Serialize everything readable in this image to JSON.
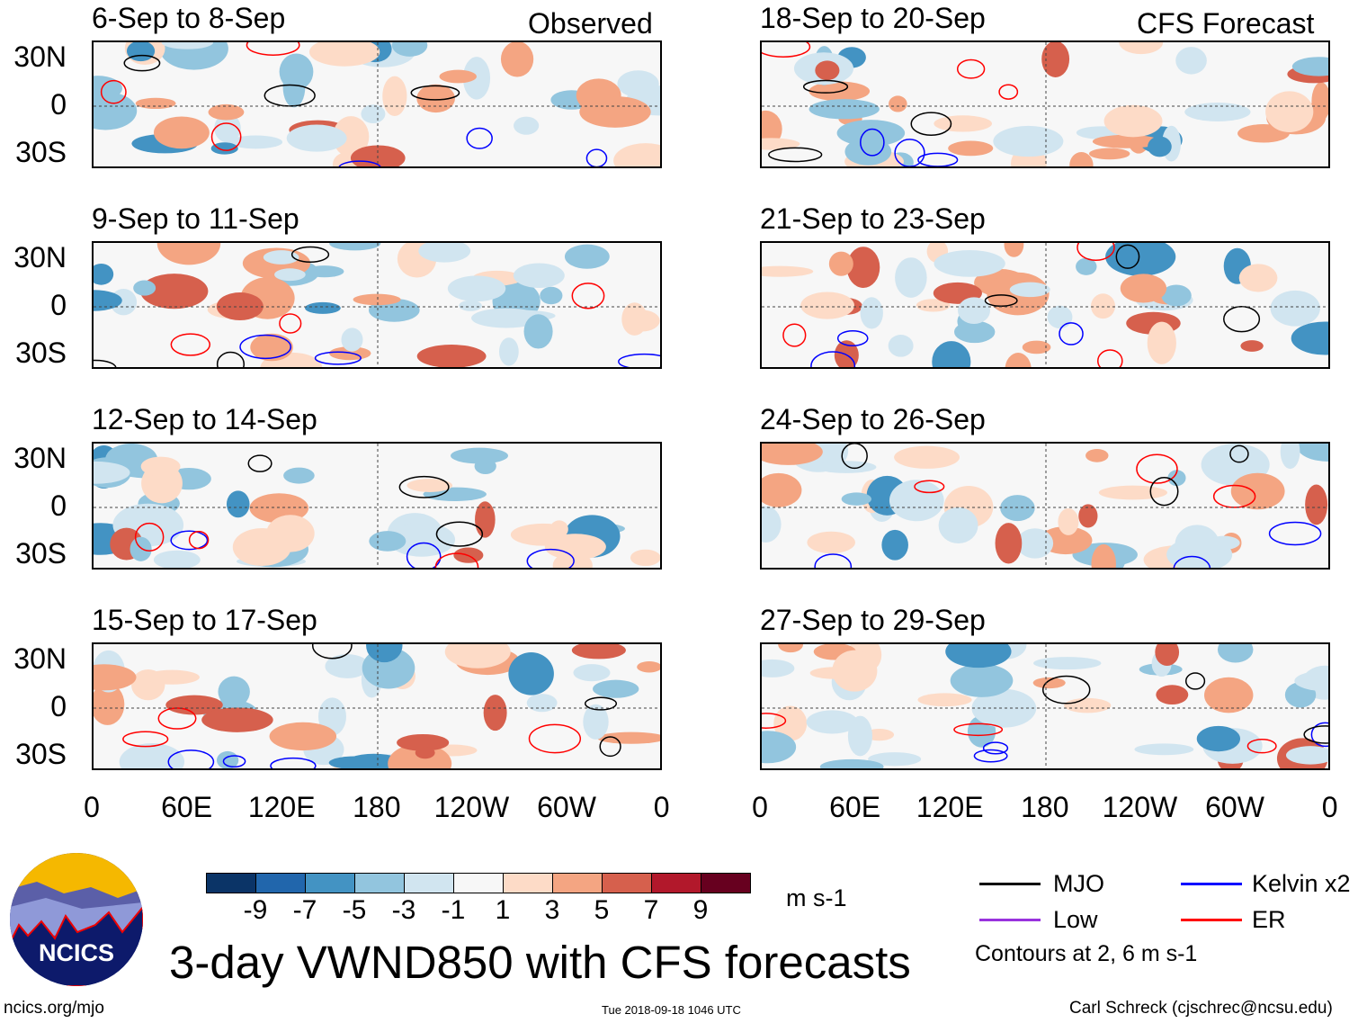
{
  "headers": {
    "left": "Observed",
    "right": "CFS Forecast"
  },
  "panels": [
    {
      "title": "6-Sep to 8-Sep",
      "column": "observed"
    },
    {
      "title": "9-Sep to 11-Sep",
      "column": "observed"
    },
    {
      "title": "12-Sep to 14-Sep",
      "column": "observed"
    },
    {
      "title": "15-Sep to 17-Sep",
      "column": "observed"
    },
    {
      "title": "18-Sep to 20-Sep",
      "column": "forecast"
    },
    {
      "title": "21-Sep to 23-Sep",
      "column": "forecast"
    },
    {
      "title": "24-Sep to 26-Sep",
      "column": "forecast"
    },
    {
      "title": "27-Sep to 29-Sep",
      "column": "forecast"
    }
  ],
  "y_ticks": [
    "30N",
    "0",
    "30S"
  ],
  "x_ticks": [
    "0",
    "60E",
    "120E",
    "180",
    "120W",
    "60W",
    "0"
  ],
  "colorbar": {
    "colors": [
      "#0b3467",
      "#2166ac",
      "#4393c3",
      "#92c5de",
      "#d1e5f0",
      "#f7f7f7",
      "#fddbc7",
      "#f4a582",
      "#d6604d",
      "#b2182b",
      "#67001f"
    ],
    "labels": [
      "-9",
      "-7",
      "-5",
      "-3",
      "-1",
      "1",
      "3",
      "5",
      "7",
      "9"
    ],
    "units": "m s-1"
  },
  "legend": {
    "items": [
      {
        "label": "MJO",
        "color": "#000000"
      },
      {
        "label": "Kelvin x2",
        "color": "#0000ff"
      },
      {
        "label": "Low",
        "color": "#9933dd"
      },
      {
        "label": "ER",
        "color": "#ff0000"
      }
    ],
    "note": "Contours at 2, 6 m s-1"
  },
  "title": "3-day VWND850 with CFS forecasts",
  "logo_text": "NCICS",
  "footer": {
    "url": "ncics.org/mjo",
    "timestamp": "Tue 2018-09-18 1046 UTC",
    "author": "Carl Schreck (cjschrec@ncsu.edu)"
  }
}
